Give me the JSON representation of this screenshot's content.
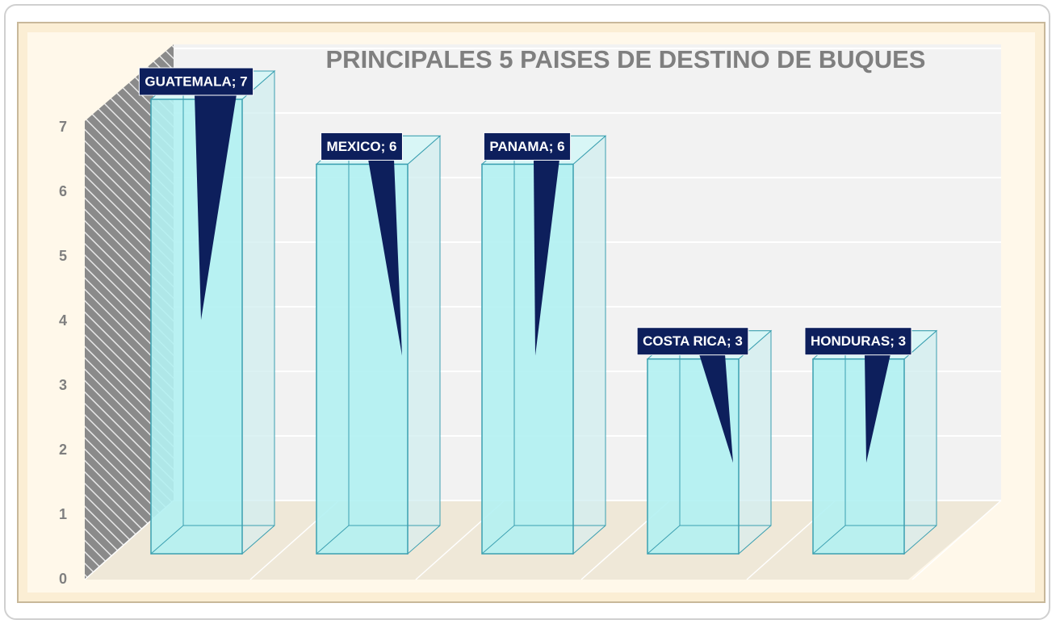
{
  "chart_data": {
    "type": "bar3d",
    "title": "PRINCIPALES 5 PAISES DE DESTINO DE BUQUES",
    "values": [
      7,
      6,
      6,
      3,
      3
    ],
    "value_labels": [
      "GUATEMALA; 7",
      "MEXICO; 6",
      "PANAMA; 6",
      "COSTA RICA; 3",
      "HONDURAS; 3"
    ],
    "ylim": [
      0,
      7
    ],
    "yticks": [
      0,
      1,
      2,
      3,
      4,
      5,
      6,
      7
    ],
    "grid": true,
    "color": "#b3f1f2"
  }
}
